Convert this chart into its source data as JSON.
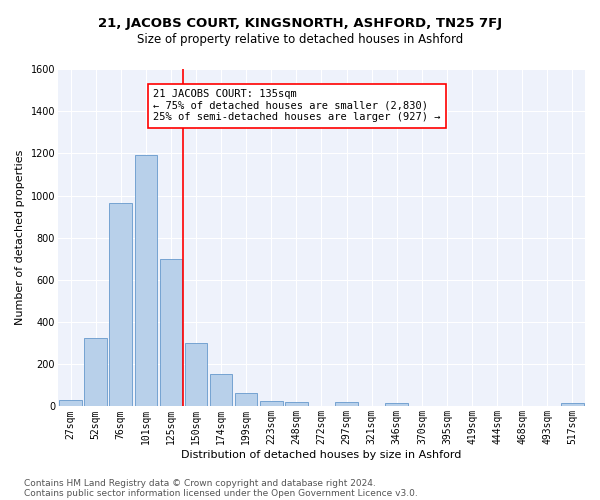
{
  "title1": "21, JACOBS COURT, KINGSNORTH, ASHFORD, TN25 7FJ",
  "title2": "Size of property relative to detached houses in Ashford",
  "xlabel": "Distribution of detached houses by size in Ashford",
  "ylabel": "Number of detached properties",
  "footer1": "Contains HM Land Registry data © Crown copyright and database right 2024.",
  "footer2": "Contains public sector information licensed under the Open Government Licence v3.0.",
  "categories": [
    "27sqm",
    "52sqm",
    "76sqm",
    "101sqm",
    "125sqm",
    "150sqm",
    "174sqm",
    "199sqm",
    "223sqm",
    "248sqm",
    "272sqm",
    "297sqm",
    "321sqm",
    "346sqm",
    "370sqm",
    "395sqm",
    "419sqm",
    "444sqm",
    "468sqm",
    "493sqm",
    "517sqm"
  ],
  "values": [
    30,
    325,
    965,
    1190,
    700,
    300,
    155,
    65,
    25,
    20,
    0,
    20,
    0,
    15,
    0,
    0,
    0,
    0,
    0,
    0,
    15
  ],
  "bar_color": "#b8d0ea",
  "bar_edgecolor": "#6699cc",
  "ylim": [
    0,
    1600
  ],
  "yticks": [
    0,
    200,
    400,
    600,
    800,
    1000,
    1200,
    1400,
    1600
  ],
  "vline_color": "red",
  "annotation_title": "21 JACOBS COURT: 135sqm",
  "annotation_line1": "← 75% of detached houses are smaller (2,830)",
  "annotation_line2": "25% of semi-detached houses are larger (927) →",
  "annotation_box_color": "white",
  "annotation_box_edgecolor": "red",
  "background_color": "#eef2fb",
  "grid_color": "white",
  "title1_fontsize": 9.5,
  "title2_fontsize": 8.5,
  "xlabel_fontsize": 8,
  "ylabel_fontsize": 8,
  "annotation_fontsize": 7.5,
  "tick_fontsize": 7,
  "footer_fontsize": 6.5
}
